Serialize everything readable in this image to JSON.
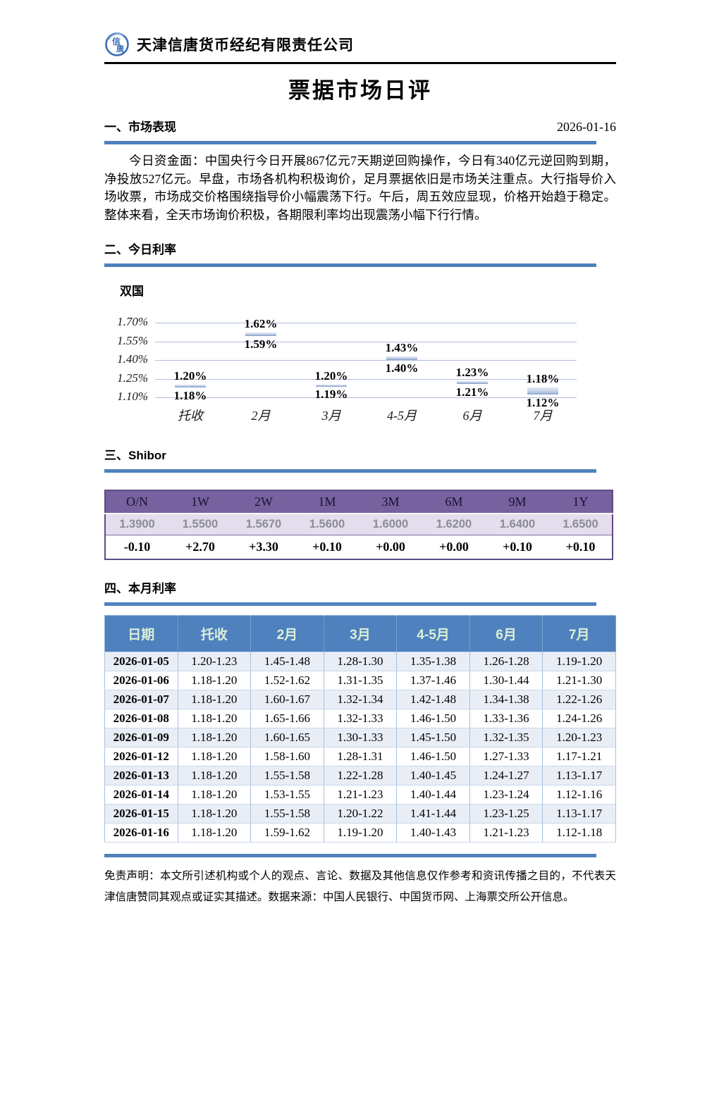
{
  "header": {
    "company": "天津信唐货币经纪有限责任公司",
    "logo_text": "信唐"
  },
  "title": "票据市场日评",
  "report_date": "2026-01-16",
  "sections": {
    "market": {
      "heading": "一、市场表现",
      "paragraph": "今日资金面：中国央行今日开展867亿元7天期逆回购操作，今日有340亿元逆回购到期，净投放527亿元。早盘，市场各机构积极询价，足月票据依旧是市场关注重点。大行指导价入场收票，市场成交价格围绕指导价小幅震荡下行。午后，周五效应显现，价格开始趋于稳定。整体来看，全天市场询价积极，各期限利率均出现震荡小幅下行行情。"
    },
    "rates": {
      "heading": "二、今日利率",
      "chart_title": "双国"
    },
    "shibor": {
      "heading": "三、Shibor"
    },
    "monthly": {
      "heading": "四、本月利率"
    }
  },
  "chart_data": {
    "type": "bar",
    "subtype": "floating-range-bar",
    "title": "双国",
    "categories": [
      "托收",
      "2月",
      "3月",
      "4-5月",
      "6月",
      "7月"
    ],
    "series": [
      {
        "name": "low",
        "values": [
          1.18,
          1.59,
          1.19,
          1.4,
          1.21,
          1.12
        ]
      },
      {
        "name": "high",
        "values": [
          1.2,
          1.62,
          1.2,
          1.43,
          1.23,
          1.18
        ]
      }
    ],
    "labels_high": [
      "1.20%",
      "1.62%",
      "1.20%",
      "1.43%",
      "1.23%",
      "1.18%"
    ],
    "labels_low": [
      "1.18%",
      "1.59%",
      "1.19%",
      "1.40%",
      "1.21%",
      "1.12%"
    ],
    "yticks": [
      "1.70%",
      "1.55%",
      "1.40%",
      "1.25%",
      "1.10%"
    ],
    "ytick_values": [
      1.7,
      1.55,
      1.4,
      1.25,
      1.1
    ],
    "ylim": [
      1.1,
      1.7
    ],
    "grid": true,
    "legend": false
  },
  "shibor_table": {
    "headers": [
      "O/N",
      "1W",
      "2W",
      "1M",
      "3M",
      "6M",
      "9M",
      "1Y"
    ],
    "values": [
      "1.3900",
      "1.5500",
      "1.5670",
      "1.5600",
      "1.6000",
      "1.6200",
      "1.6400",
      "1.6500"
    ],
    "changes": [
      "-0.10",
      "+2.70",
      "+3.30",
      "+0.10",
      "+0.00",
      "+0.00",
      "+0.10",
      "+0.10"
    ]
  },
  "monthly_table": {
    "headers": [
      "日期",
      "托收",
      "2月",
      "3月",
      "4-5月",
      "6月",
      "7月"
    ],
    "rows": [
      [
        "2026-01-05",
        "1.20-1.23",
        "1.45-1.48",
        "1.28-1.30",
        "1.35-1.38",
        "1.26-1.28",
        "1.19-1.20"
      ],
      [
        "2026-01-06",
        "1.18-1.20",
        "1.52-1.62",
        "1.31-1.35",
        "1.37-1.46",
        "1.30-1.44",
        "1.21-1.30"
      ],
      [
        "2026-01-07",
        "1.18-1.20",
        "1.60-1.67",
        "1.32-1.34",
        "1.42-1.48",
        "1.34-1.38",
        "1.22-1.26"
      ],
      [
        "2026-01-08",
        "1.18-1.20",
        "1.65-1.66",
        "1.32-1.33",
        "1.46-1.50",
        "1.33-1.36",
        "1.24-1.26"
      ],
      [
        "2026-01-09",
        "1.18-1.20",
        "1.60-1.65",
        "1.30-1.33",
        "1.45-1.50",
        "1.32-1.35",
        "1.20-1.23"
      ],
      [
        "2026-01-12",
        "1.18-1.20",
        "1.58-1.60",
        "1.28-1.31",
        "1.46-1.50",
        "1.27-1.33",
        "1.17-1.21"
      ],
      [
        "2026-01-13",
        "1.18-1.20",
        "1.55-1.58",
        "1.22-1.28",
        "1.40-1.45",
        "1.24-1.27",
        "1.13-1.17"
      ],
      [
        "2026-01-14",
        "1.18-1.20",
        "1.53-1.55",
        "1.21-1.23",
        "1.40-1.44",
        "1.23-1.24",
        "1.12-1.16"
      ],
      [
        "2026-01-15",
        "1.18-1.20",
        "1.55-1.58",
        "1.20-1.22",
        "1.41-1.44",
        "1.23-1.25",
        "1.13-1.17"
      ],
      [
        "2026-01-16",
        "1.18-1.20",
        "1.59-1.62",
        "1.19-1.20",
        "1.40-1.43",
        "1.21-1.23",
        "1.12-1.18"
      ]
    ]
  },
  "disclaimer": "免责声明：本文所引述机构或个人的观点、言论、数据及其他信息仅作参考和资讯传播之目的，不代表天津信唐赞同其观点或证实其描述。数据来源：中国人民银行、中国货币网、上海票交所公开信息。",
  "colors": {
    "accent_blue": "#4E81BD",
    "table_header_text": "#DCEFD8",
    "alt_row_blue": "#E9EEF6",
    "shibor_header_purple": "#77619E",
    "shibor_lavender": "#E3DDEE",
    "shibor_value_gray": "#8C8C92",
    "grid_line": "#AFBFD9",
    "bar_fill_top": "#E2E9F4",
    "bar_fill_bottom": "#9DB4D8"
  }
}
